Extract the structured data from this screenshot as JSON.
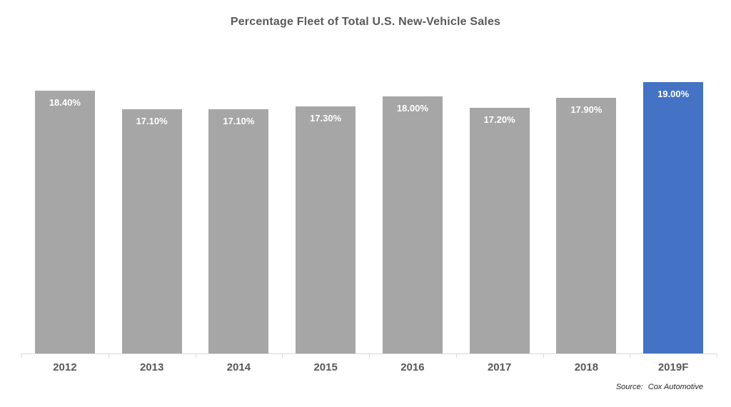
{
  "title": "Percentage Fleet of Total U.S. New-Vehicle Sales",
  "source": {
    "label": "Source:",
    "value": "Cox Automotive"
  },
  "colors": {
    "bar_default": "#A6A6A6",
    "bar_accent": "#4472C4",
    "title_text": "#595959",
    "axis_text": "#595959",
    "axis_line": "#D9D9D9",
    "bar_label_text": "#FFFFFF"
  },
  "chart_data": {
    "type": "bar",
    "title": "Percentage Fleet of Total U.S. New-Vehicle Sales",
    "categories": [
      "2012",
      "2013",
      "2014",
      "2015",
      "2016",
      "2017",
      "2018",
      "2019F"
    ],
    "values": [
      18.4,
      17.1,
      17.1,
      17.3,
      18.0,
      17.2,
      17.9,
      19.0
    ],
    "labels": [
      "18.40%",
      "17.10%",
      "17.10%",
      "17.30%",
      "18.00%",
      "17.20%",
      "17.90%",
      "19.00%"
    ],
    "bar_colors": [
      "#A6A6A6",
      "#A6A6A6",
      "#A6A6A6",
      "#A6A6A6",
      "#A6A6A6",
      "#A6A6A6",
      "#A6A6A6",
      "#4472C4"
    ],
    "xlabel": "",
    "ylabel": "",
    "ylim": [
      0,
      19
    ],
    "grid": false,
    "legend_position": "none",
    "annotation": "Source:  Cox Automotive"
  }
}
